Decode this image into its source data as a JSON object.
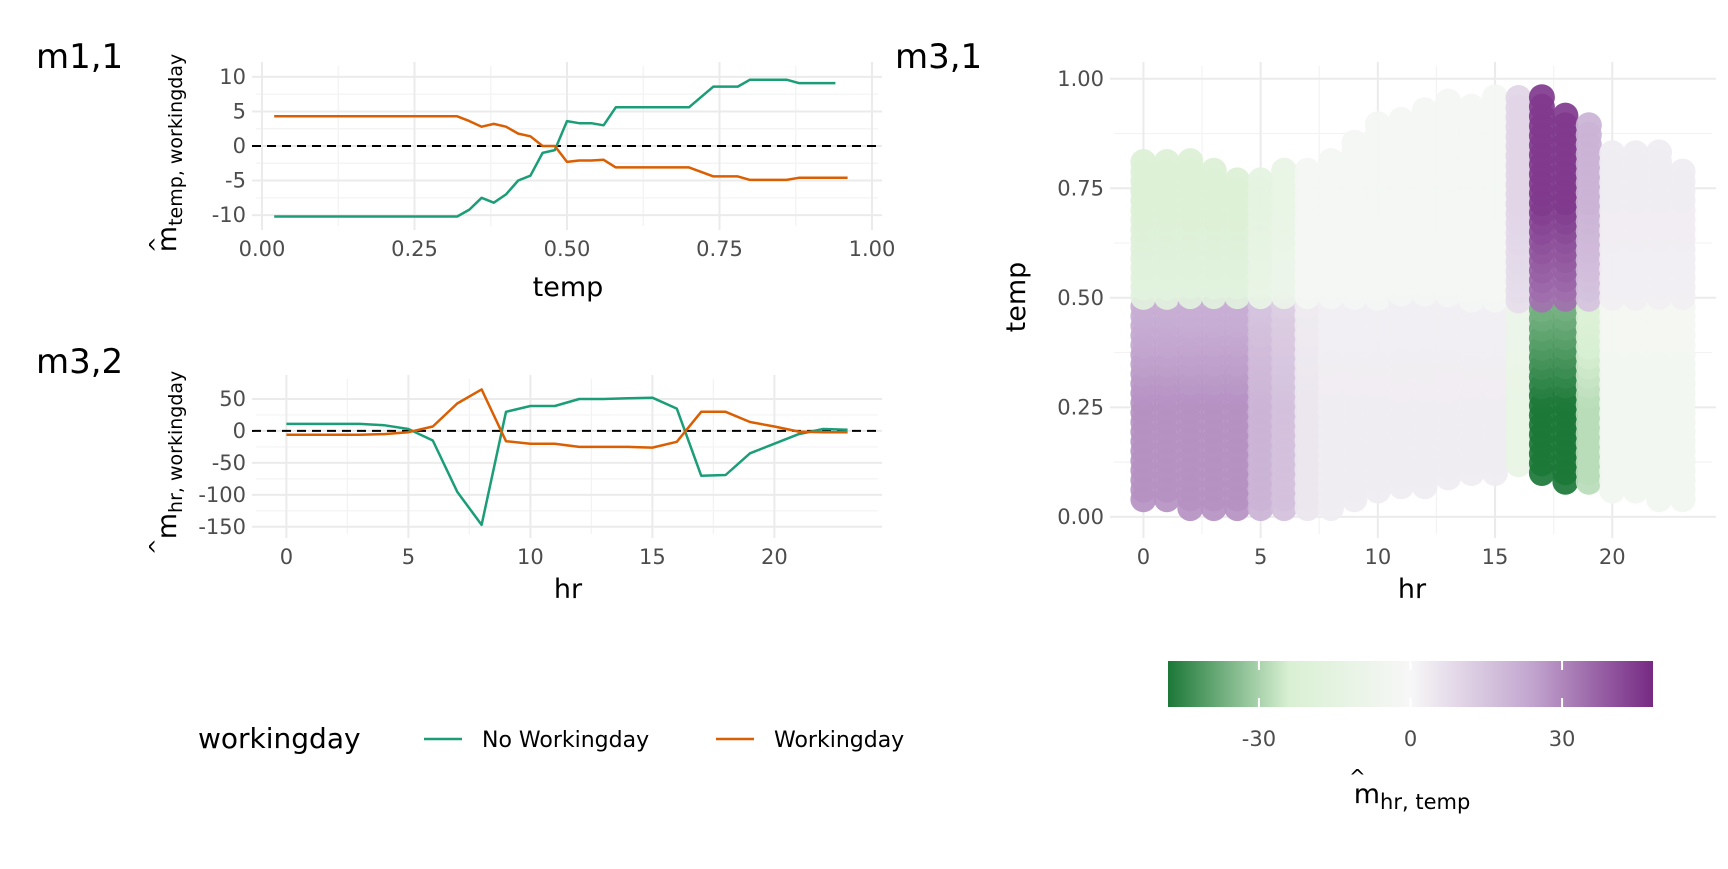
{
  "colors": {
    "no_workingday": "#1b9e77",
    "workingday": "#d95f02",
    "diverging_low": "#1b7837",
    "diverging_mid": "#f7f7f7",
    "diverging_high": "#762a83"
  },
  "panels": {
    "m11": {
      "tag": "m1,1",
      "xlabel": "temp",
      "ylabel_main": "m",
      "ylabel_sub": "temp, workingday"
    },
    "m32": {
      "tag": "m3,2",
      "xlabel": "hr",
      "ylabel_main": "m",
      "ylabel_sub": "hr, workingday"
    },
    "m31": {
      "tag": "m3,1",
      "xlabel": "hr",
      "ylabel": "temp"
    }
  },
  "legend": {
    "title": "workingday",
    "items": [
      "No Workingday",
      "Workingday"
    ]
  },
  "colorbar": {
    "title_main": "m",
    "title_sub": "hr, temp",
    "ticks": [
      "-30",
      "0",
      "30"
    ],
    "tick_values": [
      -30,
      0,
      30
    ],
    "range": [
      -48,
      48
    ]
  },
  "chart_data": [
    {
      "id": "m11",
      "type": "line",
      "xlabel": "temp",
      "ylabel": "m̂ temp, workingday",
      "xlim": [
        0,
        1
      ],
      "ylim": [
        -11,
        11
      ],
      "x_ticks": [
        "0.00",
        "0.25",
        "0.50",
        "0.75",
        "1.00"
      ],
      "y_ticks": [
        "10",
        "5",
        "0",
        "-5",
        "-10"
      ],
      "x_tick_values": [
        0,
        0.25,
        0.5,
        0.75,
        1
      ],
      "y_tick_values": [
        10,
        5,
        0,
        -5,
        -10
      ],
      "reference_line_y": 0,
      "series": [
        {
          "name": "No Workingday",
          "x": [
            0.02,
            0.32,
            0.34,
            0.36,
            0.38,
            0.4,
            0.42,
            0.44,
            0.46,
            0.48,
            0.5,
            0.52,
            0.54,
            0.56,
            0.58,
            0.62,
            0.66,
            0.7,
            0.74,
            0.78,
            0.8,
            0.84,
            0.86,
            0.88,
            0.92,
            0.94
          ],
          "y": [
            -10.2,
            -10.2,
            -9.2,
            -7.5,
            -8.2,
            -7.0,
            -5.0,
            -4.3,
            -1.0,
            -0.6,
            3.6,
            3.3,
            3.3,
            3.0,
            5.6,
            5.6,
            5.6,
            5.6,
            8.6,
            8.6,
            9.6,
            9.6,
            9.6,
            9.1,
            9.1,
            9.1
          ]
        },
        {
          "name": "Workingday",
          "x": [
            0.02,
            0.32,
            0.34,
            0.36,
            0.38,
            0.4,
            0.42,
            0.44,
            0.46,
            0.48,
            0.5,
            0.52,
            0.54,
            0.56,
            0.58,
            0.62,
            0.66,
            0.7,
            0.74,
            0.78,
            0.8,
            0.84,
            0.86,
            0.88,
            0.92,
            0.96
          ],
          "y": [
            4.3,
            4.3,
            3.6,
            2.8,
            3.2,
            2.8,
            1.8,
            1.4,
            0.0,
            0.0,
            -2.3,
            -2.1,
            -2.1,
            -2.0,
            -3.1,
            -3.1,
            -3.1,
            -3.1,
            -4.4,
            -4.4,
            -4.9,
            -4.9,
            -4.9,
            -4.6,
            -4.6,
            -4.6
          ]
        }
      ]
    },
    {
      "id": "m32",
      "type": "line",
      "xlabel": "hr",
      "ylabel": "m̂ hr, workingday",
      "xlim": [
        -1,
        24
      ],
      "ylim": [
        -155,
        75
      ],
      "x_ticks": [
        "0",
        "5",
        "10",
        "15",
        "20"
      ],
      "y_ticks": [
        "50",
        "0",
        "-50",
        "-100",
        "-150"
      ],
      "x_tick_values": [
        0,
        5,
        10,
        15,
        20
      ],
      "y_tick_values": [
        50,
        0,
        -50,
        -100,
        -150
      ],
      "reference_line_y": 0,
      "series": [
        {
          "name": "No Workingday",
          "x": [
            0,
            1,
            2,
            3,
            4,
            5,
            6,
            7,
            8,
            9,
            10,
            11,
            12,
            13,
            14,
            15,
            16,
            17,
            18,
            19,
            20,
            21,
            22,
            23
          ],
          "y": [
            11,
            11,
            11,
            11,
            9,
            3,
            -15,
            -95,
            -147,
            30,
            39,
            39,
            50,
            50,
            51,
            52,
            35,
            -70,
            -69,
            -35,
            -20,
            -5,
            3,
            2
          ]
        },
        {
          "name": "Workingday",
          "x": [
            0,
            1,
            2,
            3,
            4,
            5,
            6,
            7,
            8,
            9,
            10,
            11,
            12,
            13,
            14,
            15,
            16,
            17,
            18,
            19,
            20,
            21,
            22,
            23
          ],
          "y": [
            -6,
            -6,
            -6,
            -6,
            -5,
            -2,
            7,
            43,
            65,
            -16,
            -20,
            -20,
            -25,
            -25,
            -25,
            -26,
            -17,
            30,
            30,
            14,
            7,
            -1,
            -2,
            -2
          ]
        }
      ]
    },
    {
      "id": "m31",
      "type": "scatter",
      "xlabel": "hr",
      "ylabel": "temp",
      "xlim": [
        -1,
        24
      ],
      "ylim": [
        -0.03,
        1.02
      ],
      "x_ticks": [
        "0",
        "5",
        "10",
        "15",
        "20"
      ],
      "y_ticks": [
        "1.00",
        "0.75",
        "0.50",
        "0.25",
        "0.00"
      ],
      "x_tick_values": [
        0,
        5,
        10,
        15,
        20
      ],
      "y_tick_values": [
        1,
        0.75,
        0.5,
        0.25,
        0
      ],
      "temp_max_by_hr": [
        0.82,
        0.82,
        0.82,
        0.8,
        0.78,
        0.78,
        0.8,
        0.8,
        0.83,
        0.86,
        0.9,
        0.92,
        0.93,
        0.95,
        0.95,
        0.96,
        0.96,
        0.96,
        0.92,
        0.9,
        0.85,
        0.83,
        0.84,
        0.8
      ],
      "temp_min_by_hr": [
        0.04,
        0.04,
        0.02,
        0.02,
        0.02,
        0.02,
        0.02,
        0.02,
        0.02,
        0.04,
        0.06,
        0.07,
        0.07,
        0.09,
        0.1,
        0.1,
        0.12,
        0.1,
        0.08,
        0.08,
        0.06,
        0.06,
        0.04,
        0.04
      ],
      "value_low_temp": [
        28,
        28,
        28,
        28,
        28,
        20,
        16,
        5,
        3,
        3,
        3,
        3,
        3,
        3,
        3,
        3,
        -12,
        -48,
        -48,
        -28,
        -4,
        -4,
        -4,
        -4
      ],
      "value_high_temp": [
        -22,
        -22,
        -22,
        -22,
        -22,
        -15,
        -12,
        -3,
        -3,
        -3,
        -3,
        -3,
        -3,
        -3,
        -3,
        -3,
        10,
        45,
        45,
        20,
        3,
        3,
        3,
        3
      ],
      "temp_switch": 0.49
    }
  ]
}
